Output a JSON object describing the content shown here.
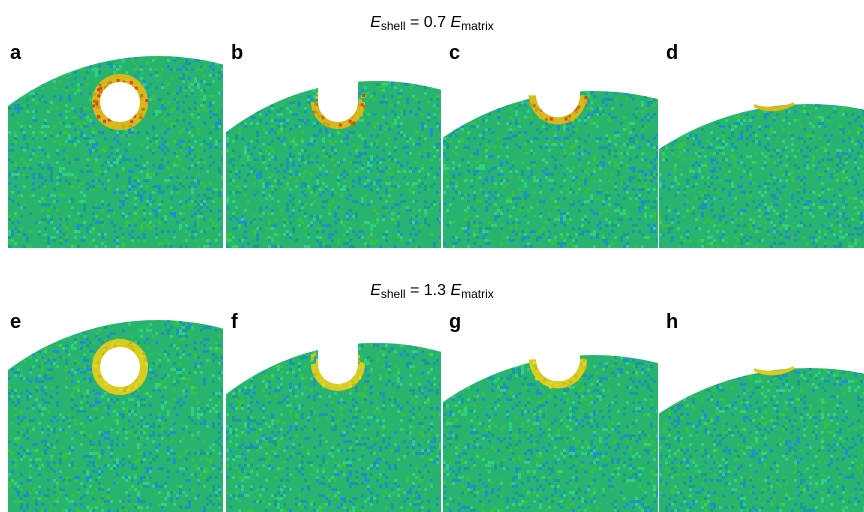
{
  "rows": [
    {
      "title": {
        "var": "E",
        "sub1": "shell",
        "eq": " = 0.7 ",
        "var2": "E",
        "sub2": "matrix"
      },
      "panels": [
        {
          "label": "a"
        },
        {
          "label": "b"
        },
        {
          "label": "c"
        },
        {
          "label": "d"
        }
      ]
    },
    {
      "title": {
        "var": "E",
        "sub1": "shell",
        "eq": " = 1.3 ",
        "var2": "E",
        "sub2": "matrix"
      },
      "panels": [
        {
          "label": "e"
        },
        {
          "label": "f"
        },
        {
          "label": "g"
        },
        {
          "label": "h"
        }
      ]
    }
  ],
  "colors": {
    "matrix_base": "#28b46e",
    "matrix_speckle": [
      "#1f8fd0",
      "#2ed17e",
      "#1a9a9a",
      "#3ac040"
    ],
    "shell_row1": [
      "#d8b81a",
      "#c8a010",
      "#e04020",
      "#b87818"
    ],
    "shell_row2": [
      "#d8cc20",
      "#e0d830",
      "#c8b818"
    ]
  }
}
